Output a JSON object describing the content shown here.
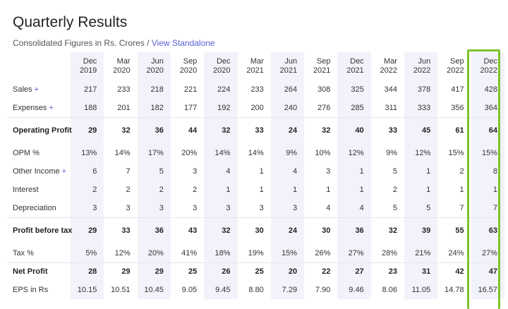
{
  "header": {
    "title": "Quarterly Results",
    "subtitle": "Consolidated Figures in Rs. Crores / ",
    "link": "View Standalone"
  },
  "columns": [
    [
      "Dec",
      "2019"
    ],
    [
      "Mar",
      "2020"
    ],
    [
      "Jun",
      "2020"
    ],
    [
      "Sep",
      "2020"
    ],
    [
      "Dec",
      "2020"
    ],
    [
      "Mar",
      "2021"
    ],
    [
      "Jun",
      "2021"
    ],
    [
      "Sep",
      "2021"
    ],
    [
      "Dec",
      "2021"
    ],
    [
      "Mar",
      "2022"
    ],
    [
      "Jun",
      "2022"
    ],
    [
      "Sep",
      "2022"
    ],
    [
      "Dec",
      "2022"
    ]
  ],
  "rows": [
    {
      "label": "Sales",
      "plus": "+",
      "values": [
        "217",
        "233",
        "218",
        "221",
        "224",
        "233",
        "264",
        "308",
        "325",
        "344",
        "378",
        "417",
        "428"
      ]
    },
    {
      "label": "Expenses",
      "plus": "+",
      "values": [
        "188",
        "201",
        "182",
        "177",
        "192",
        "200",
        "240",
        "276",
        "285",
        "311",
        "333",
        "356",
        "364"
      ]
    },
    {
      "label": "Operating Profit",
      "bold": true,
      "tall": true,
      "values": [
        "29",
        "32",
        "36",
        "44",
        "32",
        "33",
        "24",
        "32",
        "40",
        "33",
        "45",
        "61",
        "64"
      ]
    },
    {
      "label": "OPM %",
      "values": [
        "13%",
        "14%",
        "17%",
        "20%",
        "14%",
        "14%",
        "9%",
        "10%",
        "12%",
        "9%",
        "12%",
        "15%",
        "15%"
      ]
    },
    {
      "label": "Other Income",
      "plus": "+",
      "values": [
        "6",
        "7",
        "5",
        "3",
        "4",
        "1",
        "4",
        "3",
        "1",
        "5",
        "1",
        "2",
        "8"
      ]
    },
    {
      "label": "Interest",
      "values": [
        "2",
        "2",
        "2",
        "2",
        "1",
        "1",
        "1",
        "1",
        "1",
        "2",
        "1",
        "1",
        "1"
      ]
    },
    {
      "label": "Depreciation",
      "values": [
        "3",
        "3",
        "3",
        "3",
        "3",
        "3",
        "3",
        "4",
        "4",
        "5",
        "5",
        "7",
        "7"
      ]
    },
    {
      "label": "Profit before tax",
      "bold": true,
      "tall": true,
      "values": [
        "29",
        "33",
        "36",
        "43",
        "32",
        "30",
        "24",
        "30",
        "36",
        "32",
        "39",
        "55",
        "63"
      ]
    },
    {
      "label": "Tax %",
      "values": [
        "5%",
        "12%",
        "20%",
        "41%",
        "18%",
        "19%",
        "15%",
        "26%",
        "27%",
        "28%",
        "21%",
        "24%",
        "27%"
      ]
    },
    {
      "label": "Net Profit",
      "bold": true,
      "values": [
        "28",
        "29",
        "29",
        "25",
        "26",
        "25",
        "20",
        "22",
        "27",
        "23",
        "31",
        "42",
        "47"
      ]
    },
    {
      "label": "EPS in Rs",
      "values": [
        "10.15",
        "10.51",
        "10.45",
        "9.05",
        "9.45",
        "8.80",
        "7.29",
        "7.90",
        "9.46",
        "8.06",
        "11.05",
        "14.78",
        "16.57"
      ]
    }
  ],
  "colors": {
    "accent": "#5a5fd6",
    "highlight": "#7dc42c",
    "shade": "#f2f3fa"
  }
}
